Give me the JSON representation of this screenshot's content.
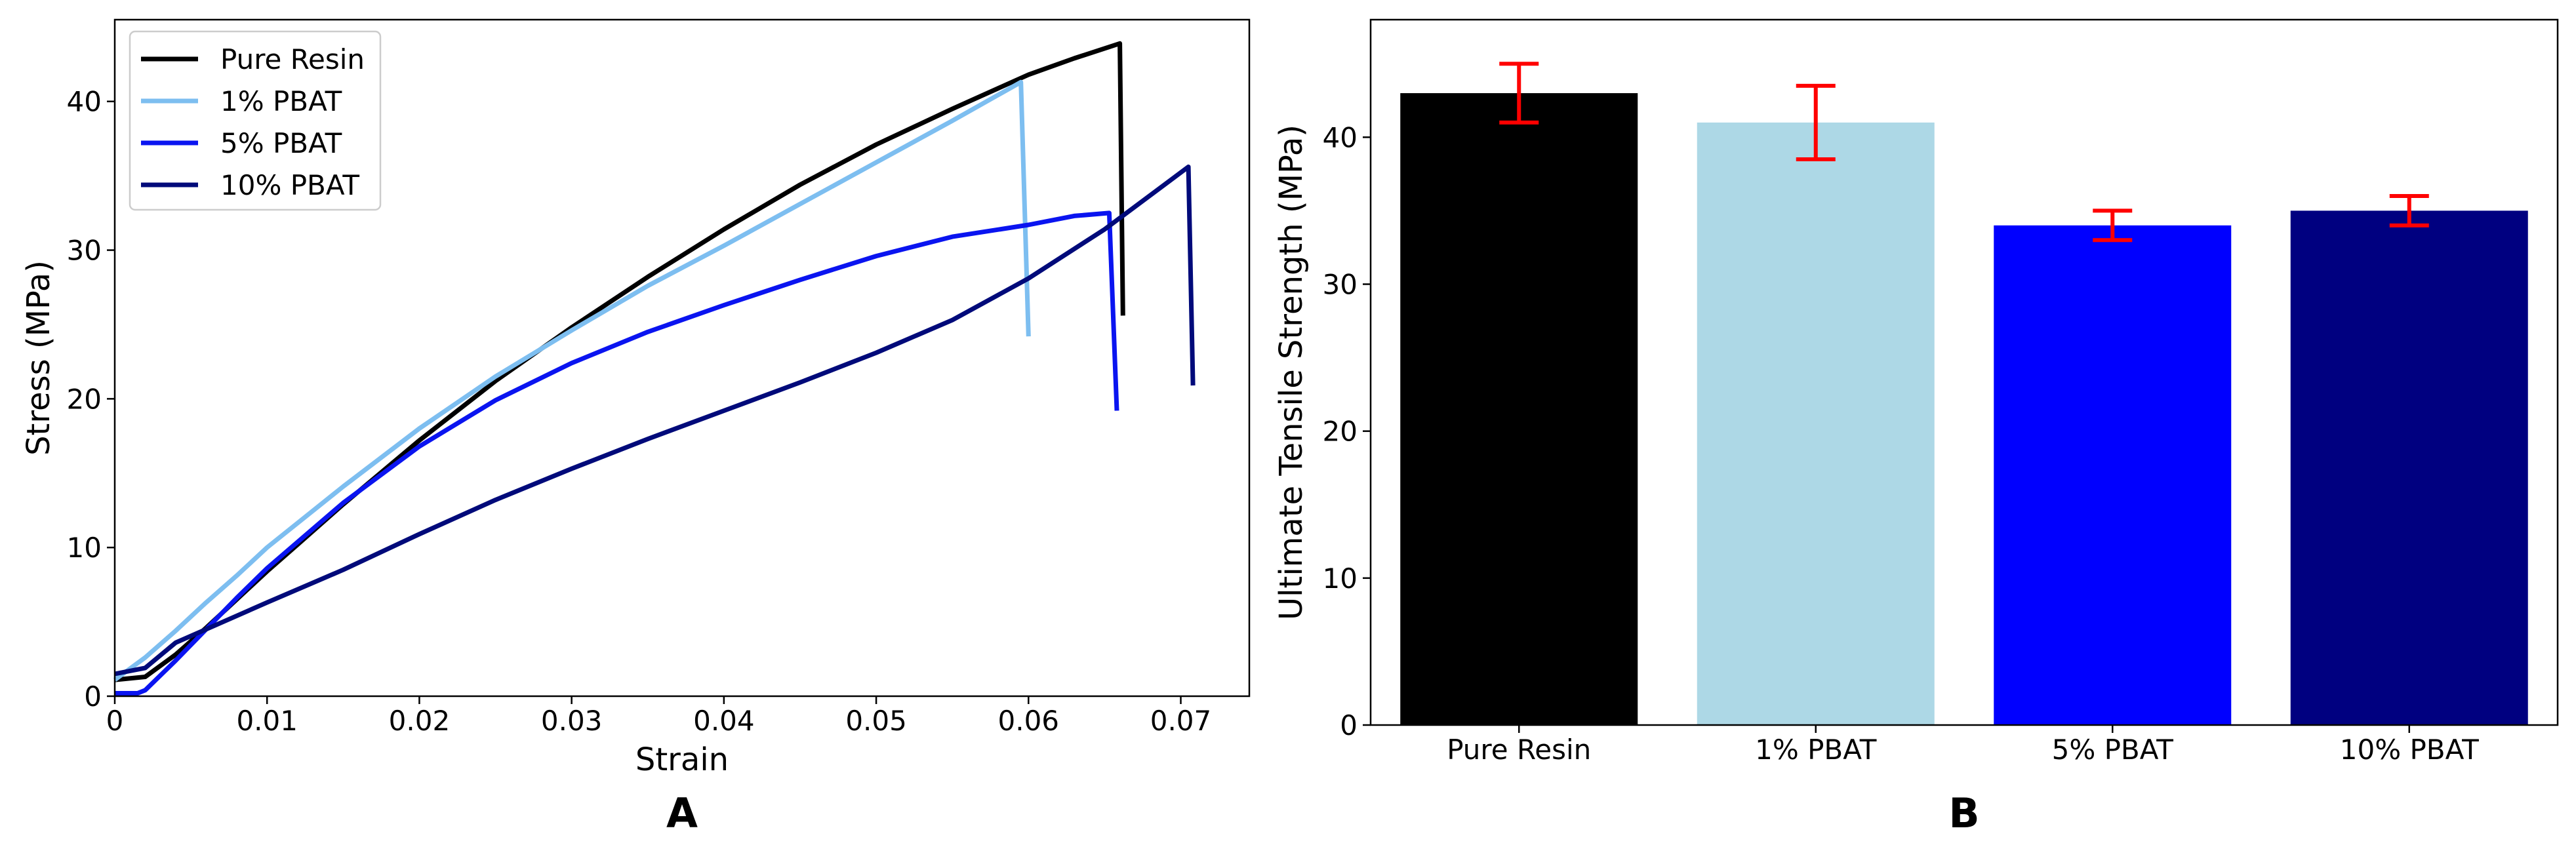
{
  "chart_data": [
    {
      "type": "line",
      "panel_label": "A",
      "xlabel": "Strain",
      "ylabel": "Stress (MPa)",
      "xlim": [
        0,
        0.0745
      ],
      "ylim": [
        0,
        45.5
      ],
      "xticks": [
        0,
        0.01,
        0.02,
        0.03,
        0.04,
        0.05,
        0.06,
        0.07
      ],
      "xtick_labels": [
        "0",
        "0.01",
        "0.02",
        "0.03",
        "0.04",
        "0.05",
        "0.06",
        "0.07"
      ],
      "yticks": [
        0,
        10,
        20,
        30,
        40
      ],
      "ytick_labels": [
        "0",
        "10",
        "20",
        "30",
        "40"
      ],
      "grid": false,
      "legend_position": "top-left",
      "series": [
        {
          "name": "Pure Resin",
          "color": "#000000",
          "x": [
            0,
            0.002,
            0.004,
            0.006,
            0.008,
            0.01,
            0.012,
            0.015,
            0.02,
            0.025,
            0.03,
            0.035,
            0.04,
            0.045,
            0.05,
            0.055,
            0.06,
            0.063,
            0.066,
            0.0662
          ],
          "y": [
            1.1,
            1.3,
            2.8,
            4.6,
            6.5,
            8.4,
            10.2,
            12.9,
            17.2,
            21.2,
            24.8,
            28.2,
            31.4,
            34.4,
            37.1,
            39.5,
            41.8,
            42.9,
            43.9,
            25.6
          ]
        },
        {
          "name": "1% PBAT",
          "color": "#7dbef0",
          "x": [
            0,
            0.002,
            0.004,
            0.006,
            0.008,
            0.01,
            0.015,
            0.02,
            0.025,
            0.03,
            0.035,
            0.04,
            0.045,
            0.05,
            0.055,
            0.0595,
            0.06
          ],
          "y": [
            1.1,
            2.6,
            4.4,
            6.3,
            8.1,
            10.0,
            14.1,
            18.0,
            21.5,
            24.6,
            27.6,
            30.3,
            33.1,
            35.9,
            38.7,
            41.3,
            24.2
          ]
        },
        {
          "name": "5% PBAT",
          "color": "#0a14f0",
          "x": [
            0,
            0.0015,
            0.002,
            0.004,
            0.006,
            0.008,
            0.01,
            0.015,
            0.02,
            0.025,
            0.03,
            0.035,
            0.04,
            0.045,
            0.05,
            0.055,
            0.06,
            0.063,
            0.0653,
            0.0658
          ],
          "y": [
            0.2,
            0.2,
            0.4,
            2.4,
            4.5,
            6.6,
            8.6,
            13.0,
            16.8,
            19.9,
            22.4,
            24.5,
            26.3,
            28.0,
            29.6,
            30.9,
            31.7,
            32.3,
            32.5,
            19.2
          ]
        },
        {
          "name": "10% PBAT",
          "color": "#000a7a",
          "x": [
            0,
            0.002,
            0.004,
            0.006,
            0.01,
            0.015,
            0.02,
            0.025,
            0.03,
            0.035,
            0.04,
            0.045,
            0.05,
            0.055,
            0.06,
            0.065,
            0.0705,
            0.0708
          ],
          "y": [
            1.5,
            1.9,
            3.6,
            4.5,
            6.3,
            8.5,
            10.9,
            13.2,
            15.3,
            17.3,
            19.2,
            21.1,
            23.1,
            25.3,
            28.1,
            31.4,
            35.6,
            20.9
          ]
        }
      ]
    },
    {
      "type": "bar",
      "panel_label": "B",
      "xlabel": "",
      "ylabel": "Ultimate Tensile Strength (MPa)",
      "categories": [
        "Pure Resin",
        "1% PBAT",
        "5% PBAT",
        "10% PBAT"
      ],
      "values": [
        43,
        41,
        34,
        35
      ],
      "error_low": [
        41,
        38.5,
        33,
        34
      ],
      "error_high": [
        45,
        43.5,
        35,
        36
      ],
      "bar_colors": [
        "#000000",
        "#add8e6",
        "#0000ff",
        "#000080"
      ],
      "error_color": "#ff0000",
      "ylim": [
        0,
        48
      ],
      "yticks": [
        0,
        10,
        20,
        30,
        40
      ],
      "ytick_labels": [
        "0",
        "10",
        "20",
        "30",
        "40"
      ],
      "grid": false
    }
  ]
}
